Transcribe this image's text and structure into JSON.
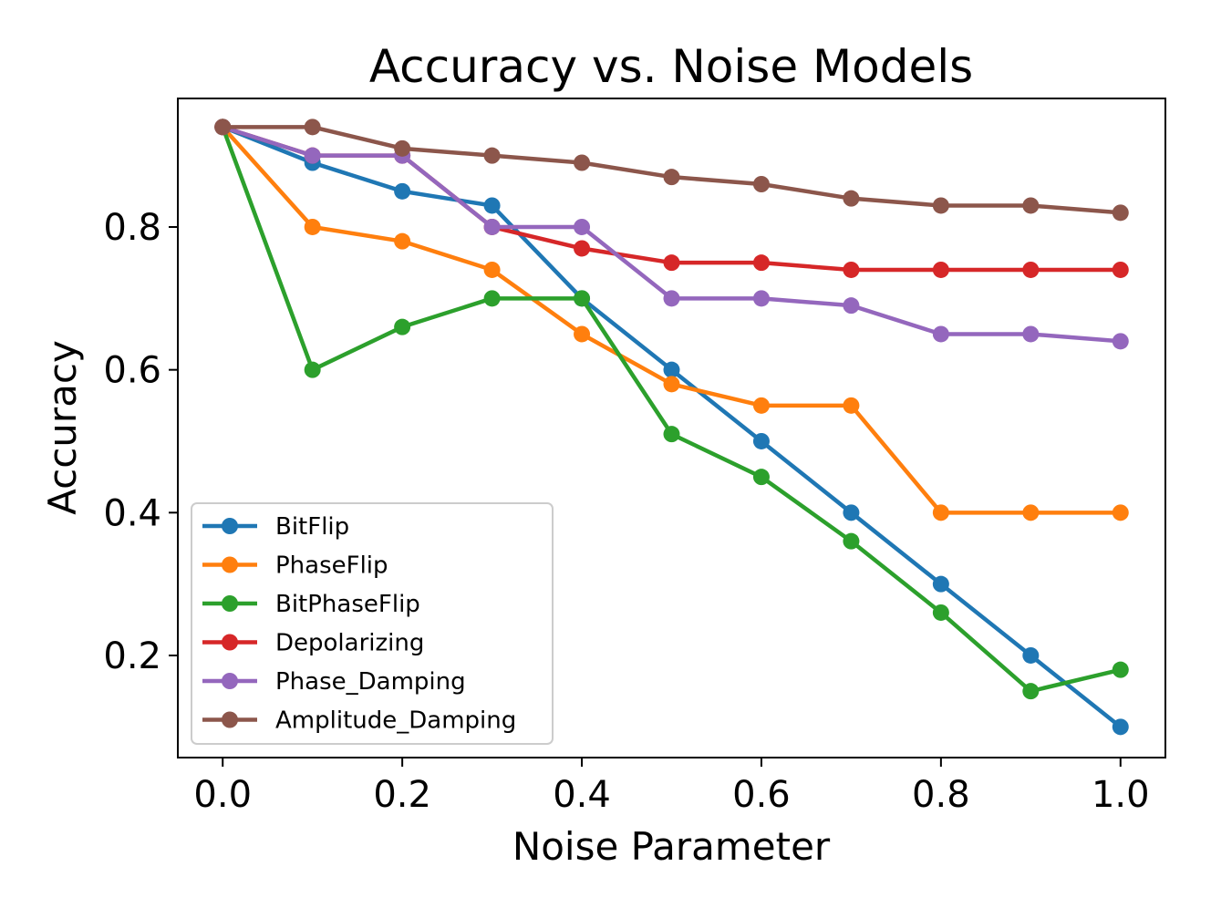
{
  "chart_data": {
    "type": "line",
    "title": "Accuracy vs. Noise Models",
    "xlabel": "Noise Parameter",
    "ylabel": "Accuracy",
    "x": [
      0.0,
      0.1,
      0.2,
      0.3,
      0.4,
      0.5,
      0.6,
      0.7,
      0.8,
      0.9,
      1.0
    ],
    "xlim": [
      -0.05,
      1.05
    ],
    "ylim": [
      0.057,
      0.98
    ],
    "xticks": [
      0.0,
      0.2,
      0.4,
      0.6,
      0.8,
      1.0
    ],
    "xtick_labels": [
      "0.0",
      "0.2",
      "0.4",
      "0.6",
      "0.8",
      "1.0"
    ],
    "yticks": [
      0.2,
      0.4,
      0.6,
      0.8
    ],
    "ytick_labels": [
      "0.2",
      "0.4",
      "0.6",
      "0.8"
    ],
    "grid": false,
    "legend_position": "lower-left",
    "series": [
      {
        "name": "BitFlip",
        "color": "#1f77b4",
        "values": [
          0.94,
          0.89,
          0.85,
          0.83,
          0.7,
          0.6,
          0.5,
          0.4,
          0.3,
          0.2,
          0.1
        ]
      },
      {
        "name": "PhaseFlip",
        "color": "#ff7f0e",
        "values": [
          0.94,
          0.8,
          0.78,
          0.74,
          0.65,
          0.58,
          0.55,
          0.55,
          0.4,
          0.4,
          0.4
        ]
      },
      {
        "name": "BitPhaseFlip",
        "color": "#2ca02c",
        "values": [
          0.94,
          0.6,
          0.66,
          0.7,
          0.7,
          0.51,
          0.45,
          0.36,
          0.26,
          0.15,
          0.18
        ]
      },
      {
        "name": "Depolarizing",
        "color": "#d62728",
        "values": [
          0.94,
          0.9,
          0.9,
          0.8,
          0.77,
          0.75,
          0.75,
          0.74,
          0.74,
          0.74,
          0.74
        ]
      },
      {
        "name": "Phase_Damping",
        "color": "#9467bd",
        "values": [
          0.94,
          0.9,
          0.9,
          0.8,
          0.8,
          0.7,
          0.7,
          0.69,
          0.65,
          0.65,
          0.64
        ]
      },
      {
        "name": "Amplitude_Damping",
        "color": "#8c564b",
        "values": [
          0.94,
          0.94,
          0.91,
          0.9,
          0.89,
          0.87,
          0.86,
          0.84,
          0.83,
          0.83,
          0.82
        ]
      }
    ]
  }
}
